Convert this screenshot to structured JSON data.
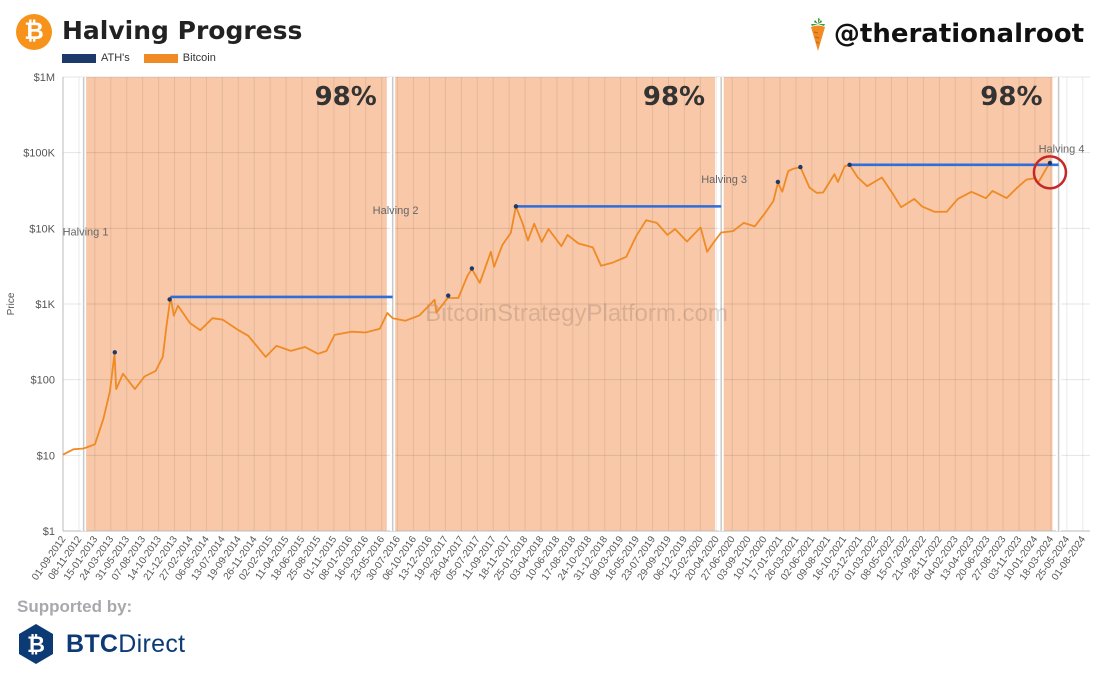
{
  "header": {
    "title": "Halving Progress",
    "brand_handle": "@therationalroot",
    "logo_glyph": "₿",
    "logo_icon": "bitcoin-icon",
    "brand_icon": "carrot-icon"
  },
  "legend": [
    {
      "label": "ATH's",
      "color": "#1b3a6b"
    },
    {
      "label": "Bitcoin",
      "color": "#f08a24"
    }
  ],
  "footer": {
    "supported_by": "Supported by:",
    "sponsor_bold": "BTC",
    "sponsor_light": "Direct",
    "sponsor_icon": "btcdirect-logo-icon"
  },
  "colors": {
    "bitcoin": "#f08a24",
    "ath": "#1b3a6b",
    "ath_level": "#2f6ddb",
    "progress_band": "#f8c8a8",
    "halving_line": "#d9d9d9",
    "highlight_circle": "#c62828",
    "brand_blue": "#0b3a75"
  },
  "chart_data": {
    "type": "line",
    "title": "Halving Progress",
    "xlabel": "",
    "ylabel": "Price",
    "y_scale": "log",
    "ylim": [
      1,
      1000000
    ],
    "xlim": [
      "2012-09-01",
      "2024-09-01"
    ],
    "y_ticks": [
      "$1",
      "$10",
      "$100",
      "$1K",
      "$10K",
      "$100K",
      "$1M"
    ],
    "x_ticks": [
      "01-09-2012",
      "08-11-2012",
      "15-01-2013",
      "24-03-2013",
      "31-05-2013",
      "07-08-2013",
      "14-10-2013",
      "21-12-2013",
      "27-02-2014",
      "06-05-2014",
      "13-07-2014",
      "19-09-2014",
      "26-11-2014",
      "02-02-2015",
      "11-04-2015",
      "18-06-2015",
      "25-08-2015",
      "01-11-2015",
      "08-01-2016",
      "16-03-2016",
      "23-05-2016",
      "30-07-2016",
      "06-10-2016",
      "13-12-2016",
      "19-02-2017",
      "28-04-2017",
      "05-07-2017",
      "11-09-2017",
      "18-11-2017",
      "25-01-2018",
      "03-04-2018",
      "10-06-2018",
      "17-08-2018",
      "24-10-2018",
      "31-12-2018",
      "09-03-2019",
      "16-05-2019",
      "23-07-2019",
      "29-09-2019",
      "06-12-2019",
      "12-02-2020",
      "20-04-2020",
      "27-06-2020",
      "03-09-2020",
      "10-11-2020",
      "17-01-2021",
      "26-03-2021",
      "02-06-2021",
      "09-08-2021",
      "16-10-2021",
      "23-12-2021",
      "01-03-2022",
      "08-05-2022",
      "15-07-2022",
      "21-09-2022",
      "28-11-2022",
      "04-02-2023",
      "13-04-2023",
      "20-06-2023",
      "27-08-2023",
      "03-11-2023",
      "10-01-2024",
      "18-03-2024",
      "25-05-2024",
      "01-08-2024"
    ],
    "halvings": [
      {
        "label": "Halving 1",
        "date": "2012-11-28"
      },
      {
        "label": "Halving 2",
        "date": "2016-07-09"
      },
      {
        "label": "Halving 3",
        "date": "2020-05-11"
      },
      {
        "label": "Halving 4",
        "date": "2024-04-20"
      }
    ],
    "progress_periods": [
      {
        "start": "2012-11-28",
        "end": "2016-06-14",
        "label": "98%"
      },
      {
        "start": "2016-07-09",
        "end": "2020-04-15",
        "label": "98%"
      },
      {
        "start": "2020-05-11",
        "end": "2024-03-25",
        "label": "98%"
      }
    ],
    "ath_levels": [
      {
        "start": "2013-12-04",
        "end": "2016-07-09",
        "value": 1240
      },
      {
        "start": "2017-12-17",
        "end": "2020-05-11",
        "value": 19500
      },
      {
        "start": "2021-11-10",
        "end": "2024-04-20",
        "value": 69000
      }
    ],
    "series": [
      {
        "name": "Bitcoin",
        "x": [
          "2012-09-01",
          "2012-10-15",
          "2012-11-28",
          "2013-01-15",
          "2013-02-20",
          "2013-03-20",
          "2013-04-09",
          "2013-04-16",
          "2013-05-15",
          "2013-07-05",
          "2013-08-15",
          "2013-10-01",
          "2013-11-01",
          "2013-11-18",
          "2013-12-04",
          "2013-12-18",
          "2014-01-05",
          "2014-02-25",
          "2014-04-10",
          "2014-06-01",
          "2014-07-15",
          "2014-09-20",
          "2014-11-01",
          "2015-01-14",
          "2015-03-01",
          "2015-05-01",
          "2015-07-01",
          "2015-08-25",
          "2015-10-01",
          "2015-11-04",
          "2016-01-15",
          "2016-03-15",
          "2016-05-15",
          "2016-06-16",
          "2016-07-09",
          "2016-09-01",
          "2016-11-01",
          "2017-01-04",
          "2017-01-12",
          "2017-03-01",
          "2017-04-15",
          "2017-05-25",
          "2017-06-12",
          "2017-07-16",
          "2017-09-01",
          "2017-09-15",
          "2017-10-20",
          "2017-11-25",
          "2017-12-17",
          "2018-01-15",
          "2018-02-06",
          "2018-03-05",
          "2018-04-06",
          "2018-05-05",
          "2018-06-29",
          "2018-07-25",
          "2018-09-10",
          "2018-11-10",
          "2018-12-15",
          "2019-02-01",
          "2019-04-02",
          "2019-05-15",
          "2019-06-26",
          "2019-08-10",
          "2019-09-25",
          "2019-10-27",
          "2019-12-17",
          "2020-02-13",
          "2020-03-12",
          "2020-04-15",
          "2020-05-11",
          "2020-07-01",
          "2020-08-15",
          "2020-10-01",
          "2020-11-15",
          "2020-12-20",
          "2021-01-08",
          "2021-01-27",
          "2021-02-21",
          "2021-03-13",
          "2021-04-14",
          "2021-05-23",
          "2021-06-22",
          "2021-07-20",
          "2021-09-06",
          "2021-09-21",
          "2021-10-20",
          "2021-11-10",
          "2021-12-15",
          "2022-01-24",
          "2022-03-28",
          "2022-05-12",
          "2022-06-18",
          "2022-08-13",
          "2022-09-15",
          "2022-11-09",
          "2022-12-30",
          "2023-02-15",
          "2023-04-14",
          "2023-06-15",
          "2023-07-13",
          "2023-09-11",
          "2023-10-24",
          "2023-12-05",
          "2024-01-11",
          "2024-01-23",
          "2024-02-28",
          "2024-03-14",
          "2024-03-25"
        ],
        "values": [
          10.2,
          12,
          12.3,
          14,
          30,
          70,
          220,
          75,
          120,
          75,
          110,
          130,
          200,
          550,
          1240,
          700,
          950,
          560,
          450,
          650,
          620,
          450,
          380,
          200,
          280,
          240,
          270,
          220,
          240,
          390,
          430,
          420,
          470,
          760,
          650,
          600,
          710,
          1140,
          770,
          1200,
          1200,
          2400,
          2900,
          1900,
          4900,
          3100,
          6000,
          8700,
          19500,
          11500,
          6900,
          11500,
          6600,
          9800,
          5800,
          8200,
          6300,
          5600,
          3200,
          3500,
          4200,
          8000,
          12800,
          11800,
          8200,
          9800,
          6700,
          10300,
          4900,
          6900,
          8800,
          9200,
          11800,
          10600,
          16000,
          23000,
          40000,
          30500,
          57000,
          61000,
          64500,
          34500,
          29500,
          29800,
          52000,
          41000,
          66000,
          69000,
          47000,
          36000,
          47000,
          29000,
          19000,
          24500,
          19500,
          16500,
          16600,
          24500,
          30400,
          25000,
          31200,
          25100,
          34000,
          44000,
          46000,
          40000,
          62000,
          73000,
          67000
        ]
      }
    ],
    "ath_points": [
      {
        "x": "2013-04-10",
        "y": 230
      },
      {
        "x": "2013-11-30",
        "y": 1150
      },
      {
        "x": "2017-03-03",
        "y": 1290
      },
      {
        "x": "2017-06-12",
        "y": 2950
      },
      {
        "x": "2017-12-17",
        "y": 19500
      },
      {
        "x": "2021-01-08",
        "y": 41000
      },
      {
        "x": "2021-04-14",
        "y": 64500
      },
      {
        "x": "2021-11-10",
        "y": 69000
      },
      {
        "x": "2024-03-14",
        "y": 73000
      }
    ],
    "watermark": "BitcoinStrategyPlatform.com"
  }
}
